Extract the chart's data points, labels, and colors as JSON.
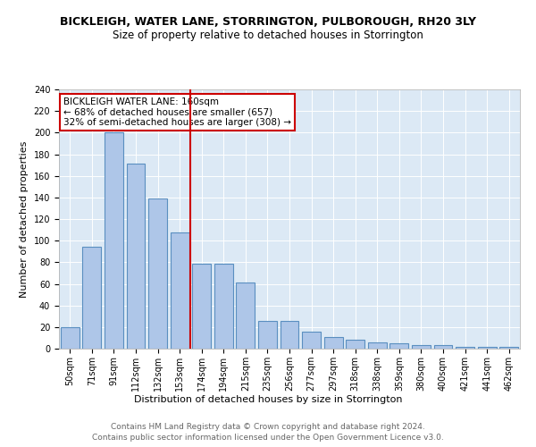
{
  "title": "BICKLEIGH, WATER LANE, STORRINGTON, PULBOROUGH, RH20 3LY",
  "subtitle": "Size of property relative to detached houses in Storrington",
  "xlabel": "Distribution of detached houses by size in Storrington",
  "ylabel": "Number of detached properties",
  "categories": [
    "50sqm",
    "71sqm",
    "91sqm",
    "112sqm",
    "132sqm",
    "153sqm",
    "174sqm",
    "194sqm",
    "215sqm",
    "235sqm",
    "256sqm",
    "277sqm",
    "297sqm",
    "318sqm",
    "338sqm",
    "359sqm",
    "380sqm",
    "400sqm",
    "421sqm",
    "441sqm",
    "462sqm"
  ],
  "values": [
    20,
    94,
    200,
    171,
    139,
    108,
    79,
    79,
    61,
    26,
    26,
    16,
    11,
    8,
    6,
    5,
    3,
    3,
    2,
    2,
    2
  ],
  "bar_color": "#aec6e8",
  "bar_edge_color": "#5a8fc0",
  "bar_edge_width": 0.8,
  "property_line_x": 5.5,
  "property_line_color": "#cc0000",
  "annotation_title": "BICKLEIGH WATER LANE: 160sqm",
  "annotation_line1": "← 68% of detached houses are smaller (657)",
  "annotation_line2": "32% of semi-detached houses are larger (308) →",
  "annotation_box_color": "#cc0000",
  "annotation_text_color": "#000000",
  "ylim": [
    0,
    240
  ],
  "yticks": [
    0,
    20,
    40,
    60,
    80,
    100,
    120,
    140,
    160,
    180,
    200,
    220,
    240
  ],
  "background_color": "#dce9f5",
  "footer_line1": "Contains HM Land Registry data © Crown copyright and database right 2024.",
  "footer_line2": "Contains public sector information licensed under the Open Government Licence v3.0.",
  "title_fontsize": 9,
  "subtitle_fontsize": 8.5,
  "axis_label_fontsize": 8,
  "tick_fontsize": 7,
  "footer_fontsize": 6.5,
  "annotation_fontsize": 7.5
}
